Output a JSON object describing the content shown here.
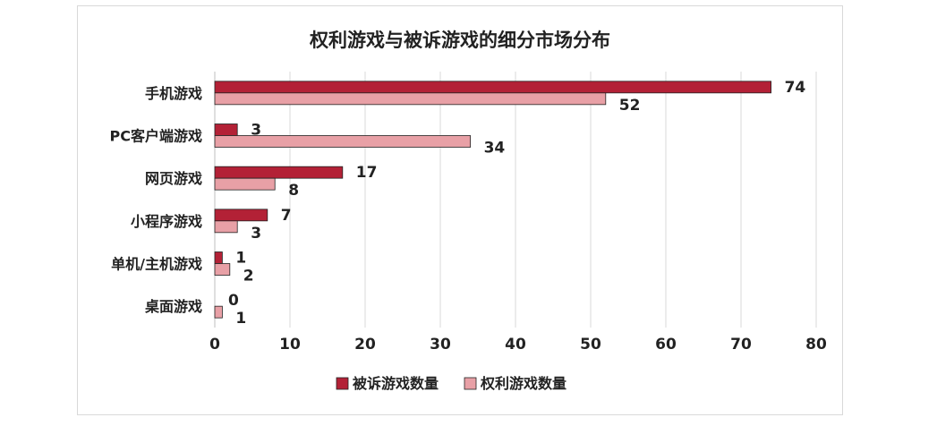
{
  "chart_data": {
    "type": "bar",
    "orientation": "horizontal",
    "title": "权利游戏与被诉游戏的细分市场分布",
    "categories": [
      "手机游戏",
      "PC客户端游戏",
      "网页游戏",
      "小程序游戏",
      "单机/主机游戏",
      "桌面游戏"
    ],
    "series": [
      {
        "name": "被诉游戏数量",
        "values": [
          74,
          3,
          17,
          7,
          1,
          0
        ],
        "color": "#b32136"
      },
      {
        "name": "权利游戏数量",
        "values": [
          52,
          34,
          8,
          3,
          2,
          1
        ],
        "color": "#e8a0a6"
      }
    ],
    "xlim": [
      0,
      80
    ],
    "xticks": [
      "0",
      "10",
      "20",
      "30",
      "40",
      "50",
      "60",
      "70",
      "80"
    ],
    "grid": true,
    "legend_position": "bottom"
  }
}
